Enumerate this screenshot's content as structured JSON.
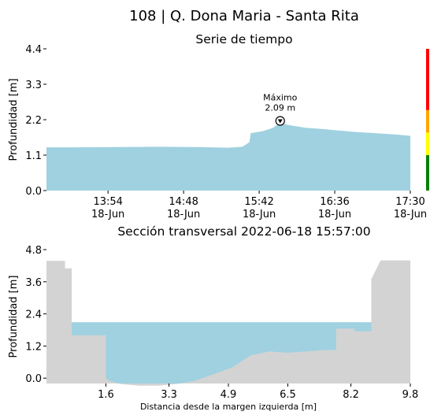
{
  "header": {
    "title": "108 | Q. Dona Maria - Santa Rita"
  },
  "colors": {
    "water": "#9fd1e0",
    "terrain": "#d3d3d3",
    "gauge_red": "#ff0000",
    "gauge_orange": "#ffa500",
    "gauge_yellow": "#ffff00",
    "gauge_green": "#008000"
  },
  "chart_data": [
    {
      "type": "area",
      "title": "Serie de tiempo",
      "xlabel": "",
      "ylabel": "Profundidad [m]",
      "ylim": [
        0,
        4.4
      ],
      "yticks": [
        {
          "value": 0.0,
          "label": "0.0"
        },
        {
          "value": 1.1,
          "label": "1.1"
        },
        {
          "value": 2.2,
          "label": "2.2"
        },
        {
          "value": 3.3,
          "label": "3.3"
        },
        {
          "value": 4.4,
          "label": "4.4"
        }
      ],
      "xlim": [
        "2022-06-18T13:10",
        "2022-06-18T17:30"
      ],
      "xticks": [
        {
          "value": "2022-06-18T13:54",
          "label": [
            "13:54",
            "18-Jun"
          ]
        },
        {
          "value": "2022-06-18T14:48",
          "label": [
            "14:48",
            "18-Jun"
          ]
        },
        {
          "value": "2022-06-18T15:42",
          "label": [
            "15:42",
            "18-Jun"
          ]
        },
        {
          "value": "2022-06-18T16:36",
          "label": [
            "16:36",
            "18-Jun"
          ]
        },
        {
          "value": "2022-06-18T17:30",
          "label": [
            "17:30",
            "18-Jun"
          ]
        }
      ],
      "series": [
        {
          "x": [
            "2022-06-18T13:10",
            "2022-06-18T13:30",
            "2022-06-18T14:00",
            "2022-06-18T14:30",
            "2022-06-18T15:00",
            "2022-06-18T15:20",
            "2022-06-18T15:30",
            "2022-06-18T15:35",
            "2022-06-18T15:36",
            "2022-06-18T15:45",
            "2022-06-18T15:52",
            "2022-06-18T15:55",
            "2022-06-18T15:57",
            "2022-06-18T16:05",
            "2022-06-18T16:15",
            "2022-06-18T16:25",
            "2022-06-18T16:35",
            "2022-06-18T16:50",
            "2022-06-18T17:05",
            "2022-06-18T17:20",
            "2022-06-18T17:30"
          ],
          "values": [
            1.34,
            1.34,
            1.35,
            1.36,
            1.35,
            1.33,
            1.36,
            1.5,
            1.78,
            1.85,
            1.95,
            2.05,
            2.09,
            2.02,
            1.95,
            1.92,
            1.88,
            1.82,
            1.78,
            1.74,
            1.7
          ]
        }
      ],
      "annotations": [
        {
          "text": "Máximo",
          "x": "2022-06-18T15:57",
          "y": 2.09
        },
        {
          "text": "2.09 m",
          "x": "2022-06-18T15:57",
          "y": 2.09
        }
      ],
      "gauge": {
        "levels": [
          {
            "from": 0.0,
            "to": 1.1,
            "color": "#008000"
          },
          {
            "from": 1.1,
            "to": 1.8,
            "color": "#ffff00"
          },
          {
            "from": 1.8,
            "to": 2.5,
            "color": "#ffa500"
          },
          {
            "from": 2.5,
            "to": 4.4,
            "color": "#ff0000"
          }
        ]
      }
    },
    {
      "type": "area",
      "title": "Sección transversal 2022-06-18 15:57:00",
      "xlabel": "Distancia desde la margen izquierda [m]",
      "ylabel": "Profundidad [m]",
      "xlim": [
        0,
        9.8
      ],
      "ylim": [
        -0.2,
        4.8
      ],
      "xticks": [
        {
          "value": 1.6,
          "label": "1.6"
        },
        {
          "value": 3.3,
          "label": "3.3"
        },
        {
          "value": 4.9,
          "label": "4.9"
        },
        {
          "value": 6.5,
          "label": "6.5"
        },
        {
          "value": 8.2,
          "label": "8.2"
        },
        {
          "value": 9.8,
          "label": "9.8"
        }
      ],
      "yticks": [
        {
          "value": 0.0,
          "label": "0.0"
        },
        {
          "value": 1.2,
          "label": "1.2"
        },
        {
          "value": 2.4,
          "label": "2.4"
        },
        {
          "value": 3.6,
          "label": "3.6"
        },
        {
          "value": 4.8,
          "label": "4.8"
        }
      ],
      "water_level": 2.09,
      "profile": {
        "x": [
          0,
          0.5,
          0.5,
          0.68,
          0.68,
          1.6,
          1.6,
          1.7,
          2.0,
          2.5,
          3.0,
          3.5,
          4.0,
          4.5,
          5.0,
          5.5,
          6.0,
          6.5,
          7.0,
          7.5,
          7.8,
          7.8,
          8.3,
          8.3,
          8.75,
          8.75,
          9.0,
          9.8
        ],
        "y": [
          4.38,
          4.38,
          4.1,
          4.1,
          1.6,
          1.6,
          0.0,
          -0.1,
          -0.22,
          -0.28,
          -0.28,
          -0.22,
          -0.1,
          0.15,
          0.4,
          0.85,
          1.0,
          0.95,
          1.0,
          1.05,
          1.05,
          1.85,
          1.85,
          1.75,
          1.75,
          3.7,
          4.4,
          4.4
        ]
      }
    }
  ]
}
